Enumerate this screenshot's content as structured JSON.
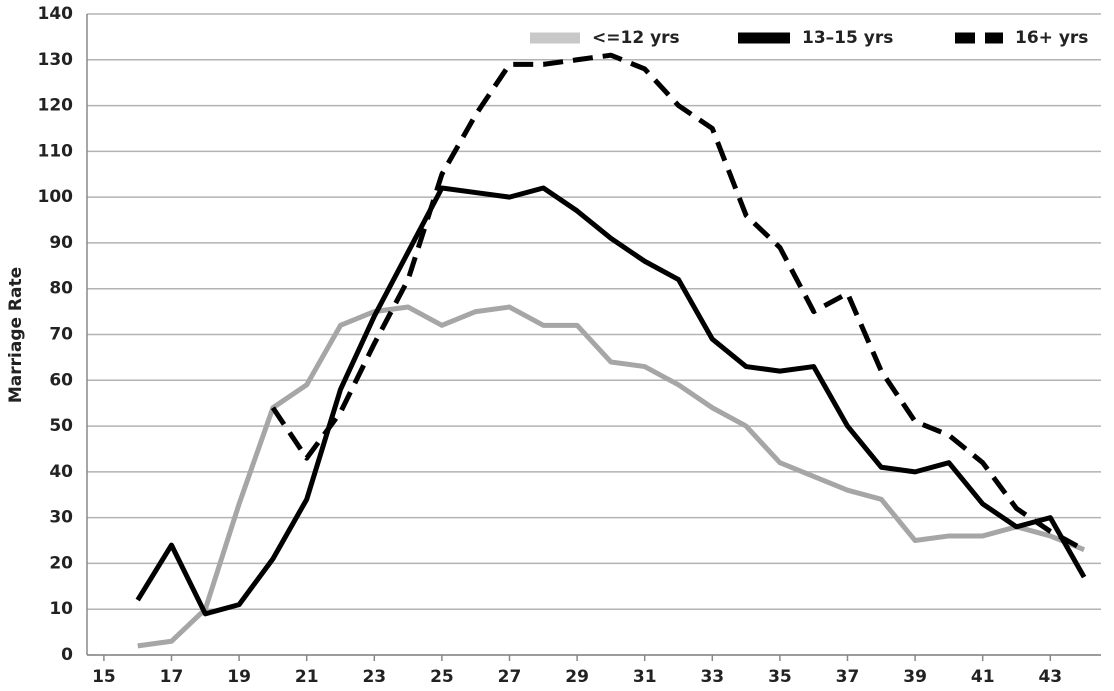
{
  "chart_data": {
    "type": "line",
    "ylabel": "Marriage Rate",
    "x": [
      16,
      17,
      18,
      19,
      20,
      21,
      22,
      23,
      24,
      25,
      26,
      27,
      28,
      29,
      30,
      31,
      32,
      33,
      34,
      35,
      36,
      37,
      38,
      39,
      40,
      41,
      42,
      43,
      44
    ],
    "xlim": [
      14.5,
      44.5
    ],
    "xticks": [
      15,
      17,
      19,
      21,
      23,
      25,
      27,
      29,
      31,
      33,
      35,
      37,
      39,
      41,
      43
    ],
    "ylim": [
      0,
      140
    ],
    "yticks": [
      0,
      10,
      20,
      30,
      40,
      50,
      60,
      70,
      80,
      90,
      100,
      110,
      120,
      130,
      140
    ],
    "grid": true,
    "legend": "top-right",
    "series": [
      {
        "name": "<=12 yrs",
        "color": "#a6a6a6",
        "line_style": "solid",
        "values": [
          2,
          3,
          10,
          33,
          54,
          59,
          72,
          75,
          76,
          72,
          75,
          76,
          72,
          72,
          64,
          63,
          59,
          54,
          50,
          42,
          39,
          36,
          34,
          25,
          26,
          26,
          28,
          26,
          23
        ]
      },
      {
        "name": "13–15 yrs",
        "color": "#000000",
        "line_style": "solid",
        "values": [
          12,
          24,
          9,
          11,
          21,
          34,
          58,
          74,
          88,
          102,
          101,
          100,
          102,
          97,
          91,
          86,
          82,
          69,
          63,
          62,
          63,
          50,
          41,
          40,
          42,
          33,
          28,
          30,
          17
        ]
      },
      {
        "name": "16+ yrs",
        "color": "#000000",
        "line_style": "dashed",
        "values": [
          null,
          null,
          null,
          null,
          54,
          43,
          53,
          68,
          82,
          105,
          118,
          129,
          129,
          130,
          131,
          128,
          120,
          115,
          96,
          89,
          75,
          79,
          62,
          51,
          48,
          42,
          32,
          27,
          23
        ]
      }
    ]
  }
}
